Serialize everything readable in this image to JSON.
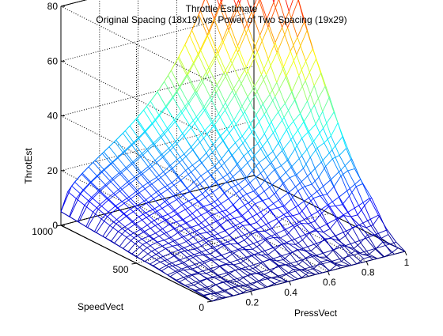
{
  "chart_data": {
    "type": "surface",
    "title": "Throttle Estimate",
    "subtitle": "Original Spacing (18x19) vs. Power of Two Spacing (19x29)",
    "xlabel": "PressVect",
    "ylabel": "SpeedVect",
    "zlabel": "ThrotEst",
    "xlim": [
      0,
      1
    ],
    "ylim": [
      0,
      1000
    ],
    "zlim": [
      0,
      80
    ],
    "x_ticks": [
      "0.2",
      "0.4",
      "0.6",
      "0.8",
      "1"
    ],
    "y_ticks": [
      "0",
      "500",
      "1000"
    ],
    "z_ticks": [
      "0",
      "20",
      "40",
      "60",
      "80"
    ],
    "grid": true,
    "colormap": "jet",
    "meshes": [
      {
        "name": "",
        "rows": 18,
        "cols": 19
      },
      {
        "name": "",
        "rows": 19,
        "cols": 29
      }
    ],
    "corner_values": [
      {
        "press": 0,
        "speed": 1000,
        "throttle": 10
      },
      {
        "press": 1,
        "speed": 1000,
        "throttle": 85
      },
      {
        "press": 0,
        "speed": 0,
        "throttle": 0
      },
      {
        "press": 1,
        "speed": 0,
        "throttle": 2
      }
    ]
  }
}
